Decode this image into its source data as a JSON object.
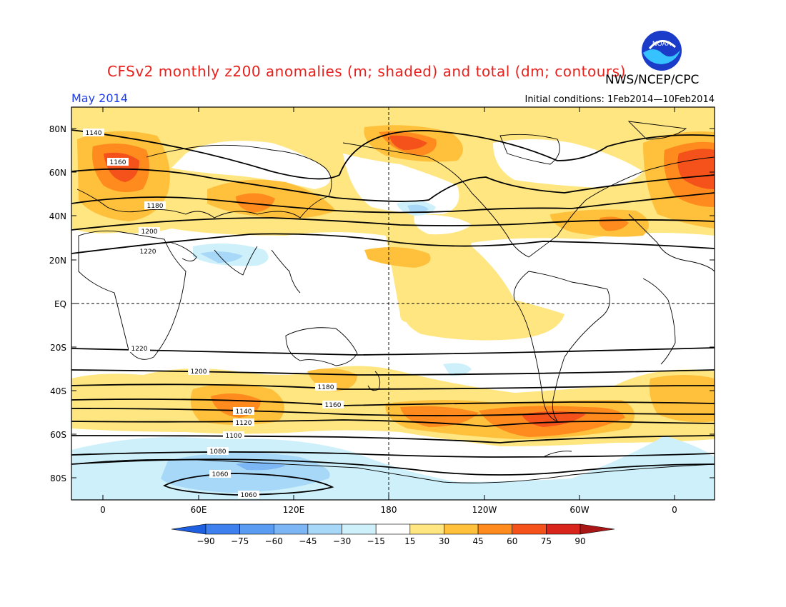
{
  "title": "CFSv2 monthly z200 anomalies (m; shaded) and total (dm; contours)",
  "agency": "NWS/NCEP/CPC",
  "logo_text": "NOAA",
  "month": "May 2014",
  "initial_conditions": "Initial conditions: 1Feb2014—10Feb2014",
  "lat_labels": [
    "80N",
    "60N",
    "40N",
    "20N",
    "EQ",
    "20S",
    "40S",
    "60S",
    "80S"
  ],
  "lon_labels": [
    "0",
    "60E",
    "120E",
    "180",
    "120W",
    "60W",
    "0"
  ],
  "colorbar": {
    "labels": [
      "-90",
      "-75",
      "-60",
      "-45",
      "-30",
      "-15",
      "15",
      "30",
      "45",
      "60",
      "75",
      "90"
    ],
    "colors": [
      "#1e5fe0",
      "#3d80ee",
      "#5a9cf2",
      "#7cb6f5",
      "#a8d8f8",
      "#cdf0fa",
      "#ffffff",
      "#ffe680",
      "#ffc03c",
      "#ff8b1e",
      "#f4521a",
      "#d8241a",
      "#a81616"
    ]
  },
  "contour_labels": [
    "1140",
    "1160",
    "1180",
    "1200",
    "1220",
    "1220",
    "1200",
    "1180",
    "1160",
    "1140",
    "1120",
    "1100",
    "1080",
    "1060",
    "1060"
  ]
}
